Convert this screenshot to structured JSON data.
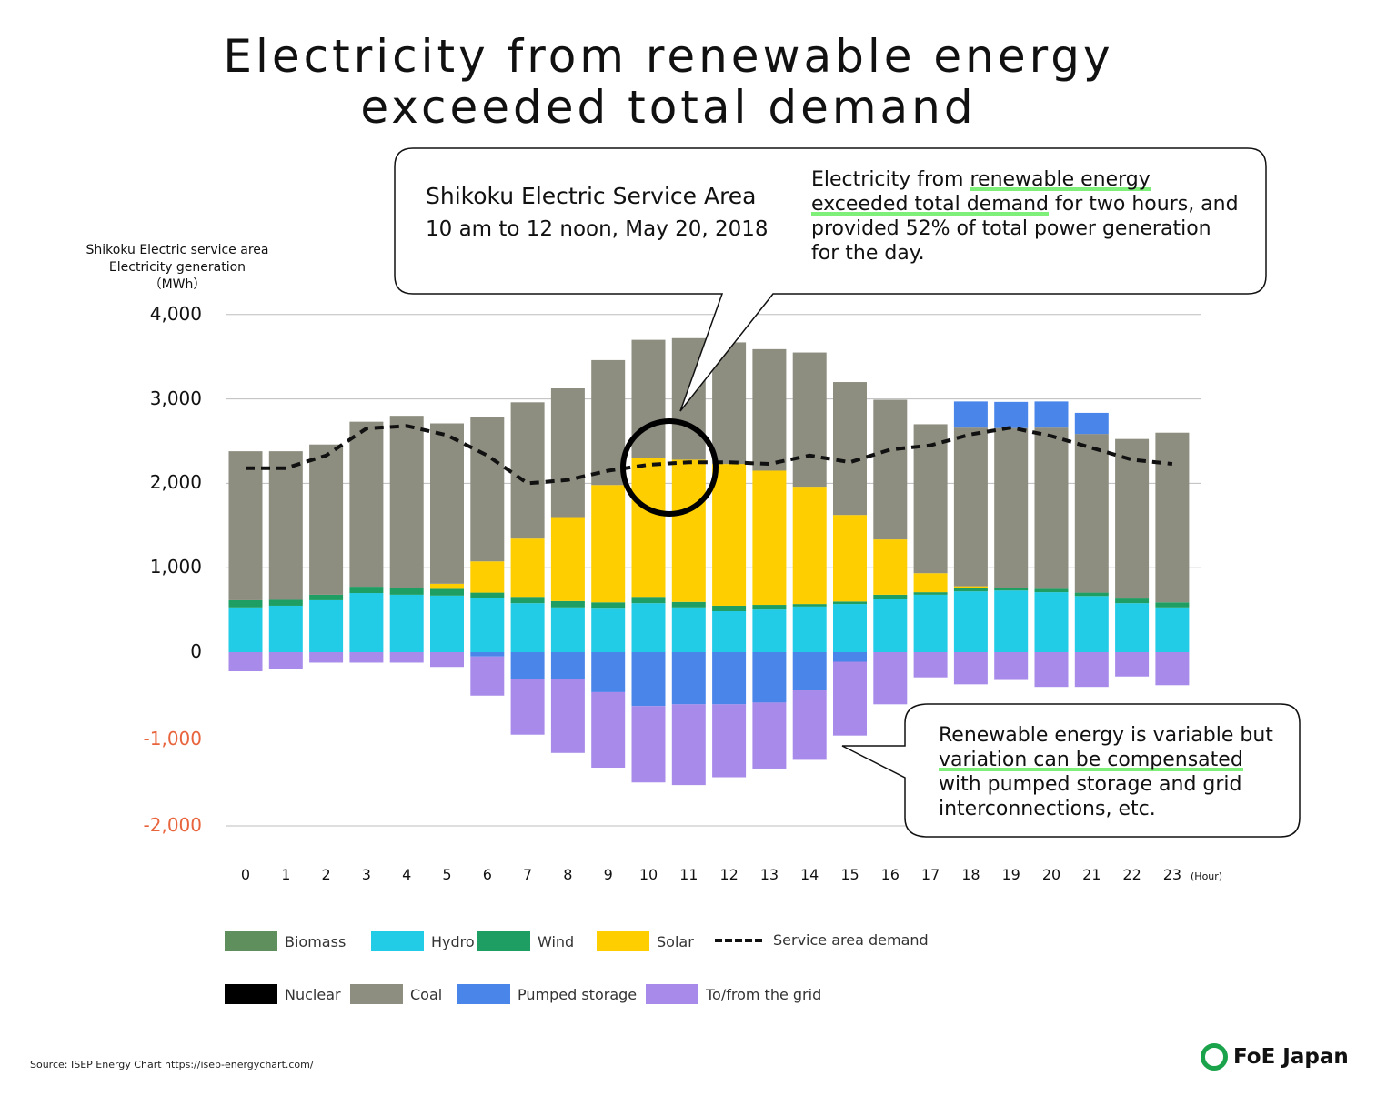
{
  "title": [
    "Electricity from renewable energy",
    "exceeded total demand"
  ],
  "callout_top": {
    "heading": "Shikoku Electric Service Area",
    "date": "10 am to 12 noon, May 20, 2018",
    "text_parts": [
      "Electricity from ",
      "renewable energy",
      "exceeded total demand",
      " for two hours, and provided 52% of total power generation for the day."
    ]
  },
  "callout_bottom": {
    "text_parts": [
      "Renewable energy is variable but ",
      "variation can be compensated",
      " with pumped storage and grid interconnections, etc."
    ]
  },
  "source": "Source: ISEP Energy Chart https://isep-energychart.com/",
  "logo": "FoE Japan",
  "chart_data": {
    "type": "bar",
    "stacked": true,
    "ylabel": [
      "Shikoku Electric service area",
      "Electricity generation",
      "（MWh）"
    ],
    "xlabel": "(Hour)",
    "ylim": [
      -2000,
      4000
    ],
    "yticks": [
      "4,000",
      "3,000",
      "2,000",
      "1,000",
      "0",
      "-1,000",
      "-2,000"
    ],
    "ytick_values": [
      4000,
      3000,
      2000,
      1000,
      0,
      -1000,
      -2000
    ],
    "negative_tick_color": "#e8643c",
    "grid": true,
    "categories": [
      "0",
      "1",
      "2",
      "3",
      "4",
      "5",
      "6",
      "7",
      "8",
      "9",
      "10",
      "11",
      "12",
      "13",
      "14",
      "15",
      "16",
      "17",
      "18",
      "19",
      "20",
      "21",
      "22",
      "23"
    ],
    "series": [
      {
        "name": "Nuclear",
        "color": "#000000",
        "values": [
          0,
          0,
          0,
          0,
          0,
          0,
          0,
          0,
          0,
          0,
          0,
          0,
          0,
          0,
          0,
          0,
          0,
          0,
          0,
          0,
          0,
          0,
          0,
          0
        ]
      },
      {
        "name": "Biomass",
        "color": "#5f8f5c",
        "values": [
          0,
          0,
          0,
          0,
          0,
          0,
          0,
          0,
          0,
          0,
          0,
          0,
          0,
          0,
          0,
          0,
          0,
          0,
          0,
          0,
          0,
          0,
          0,
          0
        ]
      },
      {
        "name": "Hydro",
        "color": "#22cbe6",
        "values": [
          530,
          550,
          615,
          700,
          680,
          670,
          640,
          580,
          530,
          515,
          580,
          530,
          485,
          505,
          540,
          570,
          625,
          680,
          720,
          730,
          710,
          665,
          580,
          530
        ]
      },
      {
        "name": "Wind",
        "color": "#1f9e63",
        "values": [
          85,
          70,
          65,
          75,
          80,
          80,
          65,
          75,
          75,
          75,
          75,
          65,
          65,
          55,
          30,
          30,
          55,
          30,
          40,
          35,
          40,
          40,
          55,
          60
        ]
      },
      {
        "name": "Solar",
        "color": "#fece00",
        "values": [
          0,
          0,
          0,
          0,
          0,
          60,
          370,
          690,
          995,
          1390,
          1645,
          1685,
          1680,
          1590,
          1390,
          1025,
          655,
          225,
          20,
          0,
          0,
          0,
          0,
          0
        ]
      },
      {
        "name": "Coal",
        "color": "#8d8d80",
        "values": [
          1765,
          1760,
          1780,
          1955,
          2040,
          1900,
          1705,
          1615,
          1525,
          1480,
          1400,
          1440,
          1440,
          1440,
          1590,
          1575,
          1655,
          1765,
          1880,
          1890,
          1910,
          1880,
          1890,
          2010
        ]
      },
      {
        "name": "Pumped storage",
        "color": "#4a86ea",
        "values": [
          0,
          0,
          0,
          0,
          0,
          0,
          -50,
          -310,
          -310,
          -460,
          -620,
          -600,
          -600,
          -580,
          -440,
          -110,
          0,
          0,
          310,
          310,
          310,
          250,
          0,
          0
        ]
      },
      {
        "name": "To/from the grid",
        "color": "#a78aea",
        "values": [
          -220,
          -195,
          -120,
          -120,
          -120,
          -170,
          -450,
          -640,
          -850,
          -870,
          -880,
          -930,
          -840,
          -760,
          -800,
          -850,
          -600,
          -290,
          -370,
          -320,
          -400,
          -400,
          -280,
          -380
        ]
      }
    ],
    "line_series": {
      "name": "Service area demand",
      "color": "#111111",
      "style": "dashed",
      "values": [
        2180,
        2180,
        2330,
        2650,
        2680,
        2570,
        2330,
        2000,
        2040,
        2150,
        2220,
        2250,
        2250,
        2230,
        2330,
        2250,
        2400,
        2450,
        2580,
        2660,
        2560,
        2420,
        2280,
        2230
      ]
    },
    "highlight_hours": [
      "10",
      "11"
    ],
    "legend": {
      "row1": [
        "Biomass",
        "Hydro",
        "Wind",
        "Solar",
        "Service area demand"
      ],
      "row2": [
        "Nuclear",
        "Coal",
        "Pumped storage",
        "To/from the grid"
      ],
      "placement": "bottom"
    }
  }
}
